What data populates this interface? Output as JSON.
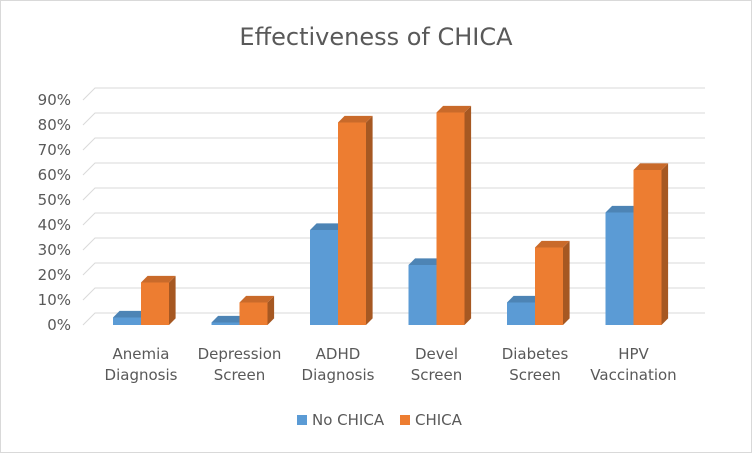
{
  "chart_data": {
    "type": "bar",
    "title": "Effectiveness of CHICA",
    "categories": [
      [
        "Anemia",
        "Diagnosis"
      ],
      [
        "Depression",
        "Screen"
      ],
      [
        "ADHD",
        "Diagnosis"
      ],
      [
        "Devel",
        "Screen"
      ],
      [
        "Diabetes",
        "Screen"
      ],
      [
        "HPV",
        "Vaccination"
      ]
    ],
    "series": [
      {
        "name": "No CHICA",
        "color": "#5b9bd5",
        "values": [
          3,
          1,
          38,
          24,
          9,
          45
        ]
      },
      {
        "name": "CHICA",
        "color": "#ed7d31",
        "values": [
          17,
          9,
          81,
          85,
          31,
          62
        ]
      }
    ],
    "yticks": [
      "0%",
      "10%",
      "20%",
      "30%",
      "40%",
      "50%",
      "60%",
      "70%",
      "80%",
      "90%"
    ],
    "ylim": [
      0,
      90
    ],
    "grid": true,
    "legend_position": "bottom"
  }
}
